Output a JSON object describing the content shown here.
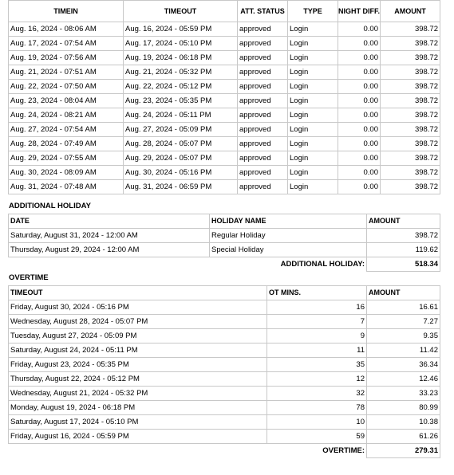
{
  "attendance": {
    "headers": {
      "timein": "TIMEIN",
      "timeout": "TIMEOUT",
      "att_status": "ATT. STATUS",
      "type": "TYPE",
      "night_diff": "NIGHT DIFF.",
      "amount": "AMOUNT"
    },
    "rows": [
      {
        "timein": "Aug. 16, 2024 - 08:06 AM",
        "timeout": "Aug. 16, 2024 - 05:59 PM",
        "status": "approved",
        "type": "Login",
        "night": "0.00",
        "amount": "398.72"
      },
      {
        "timein": "Aug. 17, 2024 - 07:54 AM",
        "timeout": "Aug. 17, 2024 - 05:10 PM",
        "status": "approved",
        "type": "Login",
        "night": "0.00",
        "amount": "398.72"
      },
      {
        "timein": "Aug. 19, 2024 - 07:56 AM",
        "timeout": "Aug. 19, 2024 - 06:18 PM",
        "status": "approved",
        "type": "Login",
        "night": "0.00",
        "amount": "398.72"
      },
      {
        "timein": "Aug. 21, 2024 - 07:51 AM",
        "timeout": "Aug. 21, 2024 - 05:32 PM",
        "status": "approved",
        "type": "Login",
        "night": "0.00",
        "amount": "398.72"
      },
      {
        "timein": "Aug. 22, 2024 - 07:50 AM",
        "timeout": "Aug. 22, 2024 - 05:12 PM",
        "status": "approved",
        "type": "Login",
        "night": "0.00",
        "amount": "398.72"
      },
      {
        "timein": "Aug. 23, 2024 - 08:04 AM",
        "timeout": "Aug. 23, 2024 - 05:35 PM",
        "status": "approved",
        "type": "Login",
        "night": "0.00",
        "amount": "398.72"
      },
      {
        "timein": "Aug. 24, 2024 - 08:21 AM",
        "timeout": "Aug. 24, 2024 - 05:11 PM",
        "status": "approved",
        "type": "Login",
        "night": "0.00",
        "amount": "398.72"
      },
      {
        "timein": "Aug. 27, 2024 - 07:54 AM",
        "timeout": "Aug. 27, 2024 - 05:09 PM",
        "status": "approved",
        "type": "Login",
        "night": "0.00",
        "amount": "398.72"
      },
      {
        "timein": "Aug. 28, 2024 - 07:49 AM",
        "timeout": "Aug. 28, 2024 - 05:07 PM",
        "status": "approved",
        "type": "Login",
        "night": "0.00",
        "amount": "398.72"
      },
      {
        "timein": "Aug. 29, 2024 - 07:55 AM",
        "timeout": "Aug. 29, 2024 - 05:07 PM",
        "status": "approved",
        "type": "Login",
        "night": "0.00",
        "amount": "398.72"
      },
      {
        "timein": "Aug. 30, 2024 - 08:09 AM",
        "timeout": "Aug. 30, 2024 - 05:16 PM",
        "status": "approved",
        "type": "Login",
        "night": "0.00",
        "amount": "398.72"
      },
      {
        "timein": "Aug. 31, 2024 - 07:48 AM",
        "timeout": "Aug. 31, 2024 - 06:59 PM",
        "status": "approved",
        "type": "Login",
        "night": "0.00",
        "amount": "398.72"
      }
    ]
  },
  "holiday": {
    "title": "ADDITIONAL HOLIDAY",
    "headers": {
      "date": "DATE",
      "name": "HOLIDAY NAME",
      "amount": "AMOUNT"
    },
    "rows": [
      {
        "date": "Saturday, August 31, 2024 - 12:00 AM",
        "name": "Regular Holiday",
        "amount": "398.72"
      },
      {
        "date": "Thursday, August 29, 2024 - 12:00 AM",
        "name": "Special Holiday",
        "amount": "119.62"
      }
    ],
    "total_label": "ADDITIONAL HOLIDAY:",
    "total_value": "518.34"
  },
  "overtime": {
    "title": "OVERTIME",
    "headers": {
      "timeout": "TIMEOUT",
      "mins": "OT MINS.",
      "amount": "AMOUNT"
    },
    "rows": [
      {
        "timeout": "Friday, August 30, 2024 - 05:16 PM",
        "mins": "16",
        "amount": "16.61"
      },
      {
        "timeout": "Wednesday, August 28, 2024 - 05:07 PM",
        "mins": "7",
        "amount": "7.27"
      },
      {
        "timeout": "Tuesday, August 27, 2024 - 05:09 PM",
        "mins": "9",
        "amount": "9.35"
      },
      {
        "timeout": "Saturday, August 24, 2024 - 05:11 PM",
        "mins": "11",
        "amount": "11.42"
      },
      {
        "timeout": "Friday, August 23, 2024 - 05:35 PM",
        "mins": "35",
        "amount": "36.34"
      },
      {
        "timeout": "Thursday, August 22, 2024 - 05:12 PM",
        "mins": "12",
        "amount": "12.46"
      },
      {
        "timeout": "Wednesday, August 21, 2024 - 05:32 PM",
        "mins": "32",
        "amount": "33.23"
      },
      {
        "timeout": "Monday, August 19, 2024 - 06:18 PM",
        "mins": "78",
        "amount": "80.99"
      },
      {
        "timeout": "Saturday, August 17, 2024 - 05:10 PM",
        "mins": "10",
        "amount": "10.38"
      },
      {
        "timeout": "Friday, August 16, 2024 - 05:59 PM",
        "mins": "59",
        "amount": "61.26"
      }
    ],
    "total_label": "OVERTIME:",
    "total_value": "279.31"
  }
}
